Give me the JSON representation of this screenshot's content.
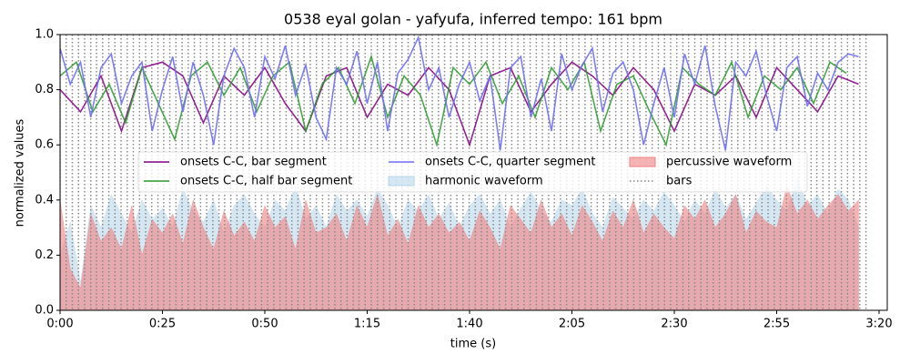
{
  "chart_data": {
    "type": "line",
    "title": "0538 eyal golan - yafyufa, inferred tempo: 161 bpm",
    "x_label": "time (s)",
    "y_label": "normalized values",
    "xlim": [
      0,
      202
    ],
    "ylim": [
      0,
      1
    ],
    "xticks": [
      {
        "value": 0,
        "label": "0:00"
      },
      {
        "value": 25,
        "label": "0:25"
      },
      {
        "value": 50,
        "label": "0:50"
      },
      {
        "value": 75,
        "label": "1:15"
      },
      {
        "value": 100,
        "label": "1:40"
      },
      {
        "value": 125,
        "label": "2:05"
      },
      {
        "value": 150,
        "label": "2:30"
      },
      {
        "value": 175,
        "label": "2:55"
      },
      {
        "value": 200,
        "label": "3:20"
      }
    ],
    "yticks": [
      {
        "value": 0,
        "label": "0.0"
      },
      0.2,
      0.4,
      0.6,
      0.8,
      {
        "value": 1,
        "label": "1.0"
      }
    ],
    "legend": "center",
    "x": [
      0,
      2.5,
      5,
      7.5,
      10,
      12.5,
      15,
      17.5,
      20,
      22.5,
      25,
      27.5,
      30,
      32.5,
      35,
      37.5,
      40,
      42.5,
      45,
      47.5,
      50,
      52.5,
      55,
      57.5,
      60,
      62.5,
      65,
      67.5,
      70,
      72.5,
      75,
      77.5,
      80,
      82.5,
      85,
      87.5,
      90,
      92.5,
      95,
      97.5,
      100,
      102.5,
      105,
      107.5,
      110,
      112.5,
      115,
      117.5,
      120,
      122.5,
      125,
      127.5,
      130,
      132.5,
      135,
      137.5,
      140,
      142.5,
      145,
      147.5,
      150,
      152.5,
      155,
      157.5,
      160,
      162.5,
      165,
      167.5,
      170,
      172.5,
      175,
      177.5,
      180,
      182.5,
      185,
      187.5,
      190,
      192.5,
      195
    ],
    "series": [
      {
        "name": "onsets C-C, bar segment",
        "kind": "line",
        "color": "#800080",
        "x": [
          0,
          5,
          10,
          15,
          20,
          25,
          30,
          35,
          40,
          45,
          50,
          55,
          60,
          65,
          70,
          75,
          80,
          85,
          90,
          95,
          100,
          105,
          110,
          115,
          120,
          125,
          130,
          135,
          140,
          145,
          150,
          155,
          160,
          165,
          170,
          175,
          180,
          185,
          190,
          195
        ],
        "values": [
          0.8,
          0.72,
          0.85,
          0.65,
          0.88,
          0.9,
          0.85,
          0.68,
          0.85,
          0.78,
          0.88,
          0.75,
          0.65,
          0.85,
          0.88,
          0.7,
          0.82,
          0.78,
          0.88,
          0.8,
          0.6,
          0.85,
          0.88,
          0.72,
          0.82,
          0.9,
          0.85,
          0.78,
          0.88,
          0.8,
          0.65,
          0.82,
          0.78,
          0.85,
          0.7,
          0.88,
          0.8,
          0.72,
          0.85,
          0.82
        ]
      },
      {
        "name": "onsets C-C, half bar segment",
        "kind": "line",
        "color": "#2a9a2a",
        "x": [
          0,
          4,
          8,
          12,
          16,
          20,
          24,
          28,
          32,
          36,
          40,
          44,
          48,
          52,
          56,
          60,
          64,
          68,
          72,
          76,
          80,
          84,
          88,
          92,
          96,
          100,
          104,
          108,
          112,
          116,
          120,
          124,
          128,
          132,
          136,
          140,
          144,
          148,
          152,
          156,
          160,
          164,
          168,
          172,
          176,
          180,
          184,
          188,
          192
        ],
        "values": [
          0.85,
          0.9,
          0.72,
          0.82,
          0.68,
          0.88,
          0.75,
          0.62,
          0.85,
          0.9,
          0.78,
          0.88,
          0.72,
          0.85,
          0.9,
          0.65,
          0.82,
          0.88,
          0.75,
          0.92,
          0.7,
          0.85,
          0.78,
          0.6,
          0.88,
          0.82,
          0.9,
          0.75,
          0.85,
          0.7,
          0.88,
          0.8,
          0.9,
          0.65,
          0.82,
          0.85,
          0.72,
          0.6,
          0.88,
          0.82,
          0.78,
          0.9,
          0.7,
          0.85,
          0.8,
          0.88,
          0.75,
          0.9,
          0.86
        ]
      },
      {
        "name": "onsets C-C, quarter segment",
        "kind": "line",
        "color": "#6f6ff5",
        "values": [
          0.95,
          0.82,
          0.9,
          0.7,
          0.88,
          0.93,
          0.75,
          0.85,
          0.9,
          0.65,
          0.8,
          0.92,
          0.72,
          0.9,
          0.78,
          0.6,
          0.85,
          0.95,
          0.88,
          0.7,
          0.92,
          0.84,
          0.96,
          0.78,
          0.89,
          0.7,
          0.62,
          0.88,
          0.82,
          0.94,
          0.75,
          0.9,
          0.65,
          0.86,
          0.91,
          0.99,
          0.8,
          0.88,
          0.7,
          0.82,
          0.9,
          0.76,
          0.85,
          0.58,
          0.88,
          0.92,
          0.7,
          0.84,
          0.65,
          0.93,
          0.8,
          0.89,
          0.95,
          0.72,
          0.86,
          0.9,
          0.8,
          0.6,
          0.75,
          0.88,
          0.7,
          0.93,
          0.82,
          0.96,
          0.74,
          0.58,
          0.9,
          0.85,
          0.94,
          0.78,
          0.65,
          0.88,
          0.92,
          0.74,
          0.86,
          0.8,
          0.9,
          0.93,
          0.92
        ]
      },
      {
        "name": "harmonic waveform",
        "kind": "area",
        "color": "#b7d7ea",
        "values": [
          0.2,
          0.32,
          0.1,
          0.38,
          0.3,
          0.42,
          0.35,
          0.28,
          0.4,
          0.33,
          0.37,
          0.3,
          0.44,
          0.36,
          0.32,
          0.4,
          0.28,
          0.38,
          0.42,
          0.35,
          0.3,
          0.4,
          0.36,
          0.45,
          0.33,
          0.38,
          0.3,
          0.42,
          0.36,
          0.4,
          0.34,
          0.44,
          0.38,
          0.3,
          0.4,
          0.36,
          0.42,
          0.33,
          0.39,
          0.3,
          0.38,
          0.42,
          0.35,
          0.4,
          0.3,
          0.37,
          0.43,
          0.36,
          0.32,
          0.4,
          0.38,
          0.44,
          0.35,
          0.3,
          0.41,
          0.37,
          0.33,
          0.4,
          0.36,
          0.43,
          0.38,
          0.32,
          0.4,
          0.35,
          0.44,
          0.37,
          0.42,
          0.33,
          0.39,
          0.45,
          0.4,
          0.36,
          0.48,
          0.38,
          0.42,
          0.35,
          0.44,
          0.4,
          0.3
        ]
      },
      {
        "name": "percussive waveform",
        "kind": "area",
        "color": "#f08080",
        "values": [
          0.4,
          0.15,
          0.08,
          0.35,
          0.25,
          0.3,
          0.22,
          0.38,
          0.2,
          0.33,
          0.28,
          0.35,
          0.24,
          0.4,
          0.3,
          0.22,
          0.36,
          0.27,
          0.32,
          0.25,
          0.38,
          0.3,
          0.34,
          0.22,
          0.4,
          0.28,
          0.3,
          0.35,
          0.25,
          0.38,
          0.3,
          0.42,
          0.27,
          0.33,
          0.24,
          0.38,
          0.3,
          0.35,
          0.28,
          0.32,
          0.25,
          0.36,
          0.3,
          0.22,
          0.38,
          0.33,
          0.28,
          0.4,
          0.3,
          0.35,
          0.27,
          0.38,
          0.32,
          0.25,
          0.36,
          0.3,
          0.4,
          0.28,
          0.35,
          0.3,
          0.26,
          0.38,
          0.33,
          0.4,
          0.3,
          0.35,
          0.42,
          0.28,
          0.36,
          0.32,
          0.3,
          0.45,
          0.35,
          0.4,
          0.33,
          0.38,
          0.42,
          0.36,
          0.4
        ]
      },
      {
        "name": "bars",
        "kind": "vlines",
        "color": "#888888",
        "x": [
          0,
          1.5,
          3.0,
          4.5,
          6.0,
          7.5,
          8.9,
          10.4,
          11.9,
          13.4,
          14.9,
          16.4,
          17.9,
          19.4,
          20.9,
          22.4,
          23.9,
          25.3,
          26.8,
          28.3,
          29.8,
          31.3,
          32.8,
          34.3,
          35.8,
          37.3,
          38.8,
          40.2,
          41.7,
          43.2,
          44.7,
          46.2,
          47.7,
          49.2,
          50.7,
          52.2,
          53.7,
          55.2,
          56.6,
          58.1,
          59.6,
          61.1,
          62.6,
          64.1,
          65.6,
          67.1,
          68.6,
          70.1,
          71.6,
          73.0,
          74.5,
          76.0,
          77.5,
          79.0,
          80.5,
          82.0,
          83.5,
          85.0,
          86.5,
          88.0,
          89.4,
          90.9,
          92.4,
          93.9,
          95.4,
          96.9,
          98.4,
          99.9,
          101.4,
          102.9,
          104.3,
          105.8,
          107.3,
          108.8,
          110.3,
          111.8,
          113.3,
          114.8,
          116.3,
          117.8,
          119.3,
          120.7,
          122.2,
          123.7,
          125.2,
          126.7,
          128.2,
          129.7,
          131.2,
          132.7,
          134.2,
          135.7,
          137.1,
          138.6,
          140.1,
          141.6,
          143.1,
          144.6,
          146.1,
          147.6,
          149.1,
          150.6,
          152.1,
          153.5,
          155.0,
          156.5,
          158.0,
          159.5,
          161.0,
          162.5,
          164.0,
          165.5,
          167.0,
          168.4,
          169.9,
          171.4,
          172.9,
          174.4,
          175.9,
          177.4,
          178.9,
          180.4,
          181.9,
          183.4,
          184.8,
          186.3,
          187.8,
          189.3,
          190.8,
          192.3,
          193.8,
          195.3,
          196.8
        ]
      }
    ]
  }
}
